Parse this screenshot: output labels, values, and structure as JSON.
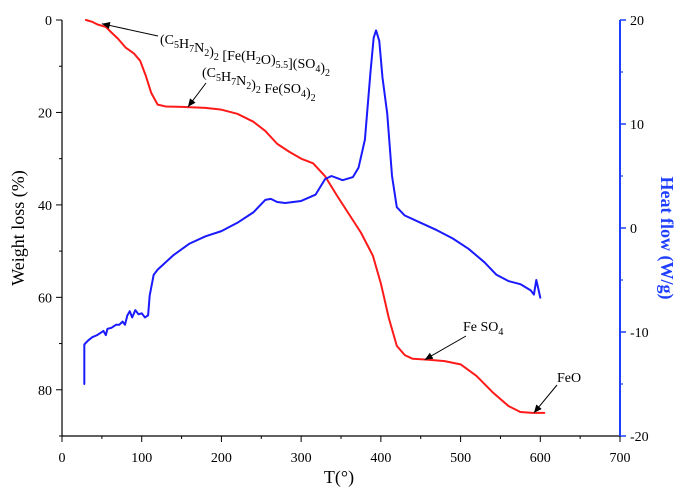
{
  "chart_data": {
    "type": "line",
    "title": "",
    "xlabel": "T(°)",
    "ylabel_left": "Weight loss (%)",
    "ylabel_right": "Heat flow (W/g)",
    "xlim": [
      0,
      700
    ],
    "ylim_left": [
      0,
      90
    ],
    "ylim_right": [
      -20,
      20
    ],
    "left_axis_inverted": true,
    "x_ticks": [
      0,
      100,
      200,
      300,
      400,
      500,
      600,
      700
    ],
    "y_left_ticks": [
      0,
      20,
      40,
      60,
      80
    ],
    "y_right_ticks": [
      20,
      10,
      0,
      -10,
      -20
    ],
    "grid": false,
    "series": [
      {
        "color": "#ff1a1a",
        "axis": "left",
        "points": [
          [
            30,
            0.0
          ],
          [
            38,
            0.4
          ],
          [
            45,
            1.0
          ],
          [
            55,
            1.5
          ],
          [
            62,
            2.7
          ],
          [
            70,
            4.0
          ],
          [
            80,
            6.0
          ],
          [
            90,
            7.2
          ],
          [
            98,
            8.8
          ],
          [
            105,
            12.0
          ],
          [
            112,
            15.8
          ],
          [
            120,
            18.3
          ],
          [
            130,
            18.7
          ],
          [
            150,
            18.8
          ],
          [
            180,
            19.0
          ],
          [
            200,
            19.4
          ],
          [
            220,
            20.3
          ],
          [
            240,
            22.0
          ],
          [
            255,
            24.0
          ],
          [
            270,
            26.8
          ],
          [
            285,
            28.5
          ],
          [
            300,
            30.0
          ],
          [
            315,
            31.0
          ],
          [
            330,
            33.8
          ],
          [
            345,
            38.0
          ],
          [
            360,
            42.0
          ],
          [
            375,
            46.0
          ],
          [
            390,
            51.0
          ],
          [
            400,
            57.0
          ],
          [
            410,
            64.5
          ],
          [
            420,
            70.5
          ],
          [
            430,
            72.5
          ],
          [
            440,
            73.3
          ],
          [
            460,
            73.5
          ],
          [
            480,
            73.8
          ],
          [
            500,
            74.5
          ],
          [
            520,
            77.0
          ],
          [
            540,
            80.5
          ],
          [
            560,
            83.5
          ],
          [
            575,
            84.8
          ],
          [
            590,
            85.0
          ],
          [
            605,
            85.0
          ]
        ]
      },
      {
        "color": "#1a1aff",
        "axis": "right",
        "points": [
          [
            28,
            -15.0
          ],
          [
            28,
            -11.2
          ],
          [
            33,
            -10.8
          ],
          [
            38,
            -10.5
          ],
          [
            44,
            -10.3
          ],
          [
            48,
            -10.1
          ],
          [
            52,
            -9.9
          ],
          [
            55,
            -10.3
          ],
          [
            57,
            -9.7
          ],
          [
            62,
            -9.6
          ],
          [
            68,
            -9.3
          ],
          [
            72,
            -9.3
          ],
          [
            76,
            -9.0
          ],
          [
            79,
            -9.3
          ],
          [
            82,
            -8.4
          ],
          [
            85,
            -8.0
          ],
          [
            88,
            -8.6
          ],
          [
            92,
            -7.9
          ],
          [
            96,
            -8.3
          ],
          [
            100,
            -8.2
          ],
          [
            104,
            -8.6
          ],
          [
            108,
            -8.4
          ],
          [
            110,
            -6.5
          ],
          [
            115,
            -4.5
          ],
          [
            120,
            -4.0
          ],
          [
            140,
            -2.6
          ],
          [
            160,
            -1.5
          ],
          [
            180,
            -0.8
          ],
          [
            200,
            -0.3
          ],
          [
            220,
            0.5
          ],
          [
            240,
            1.5
          ],
          [
            255,
            2.7
          ],
          [
            262,
            2.8
          ],
          [
            270,
            2.5
          ],
          [
            280,
            2.4
          ],
          [
            300,
            2.6
          ],
          [
            318,
            3.2
          ],
          [
            330,
            4.7
          ],
          [
            338,
            5.0
          ],
          [
            345,
            4.8
          ],
          [
            352,
            4.6
          ],
          [
            365,
            4.9
          ],
          [
            372,
            5.8
          ],
          [
            380,
            8.5
          ],
          [
            387,
            15.0
          ],
          [
            391,
            18.3
          ],
          [
            394,
            19.0
          ],
          [
            398,
            18.0
          ],
          [
            402,
            14.5
          ],
          [
            408,
            11.0
          ],
          [
            414,
            5.0
          ],
          [
            420,
            2.0
          ],
          [
            430,
            1.2
          ],
          [
            450,
            0.5
          ],
          [
            470,
            -0.2
          ],
          [
            490,
            -1.0
          ],
          [
            510,
            -2.0
          ],
          [
            530,
            -3.3
          ],
          [
            545,
            -4.5
          ],
          [
            560,
            -5.1
          ],
          [
            575,
            -5.4
          ],
          [
            588,
            -6.0
          ],
          [
            592,
            -6.4
          ],
          [
            595,
            -5.0
          ],
          [
            598,
            -6.0
          ],
          [
            600,
            -6.7
          ]
        ]
      }
    ],
    "annotations": [
      {
        "id": "ann1",
        "parts": [
          {
            "t": "(C"
          },
          {
            "t": "5",
            "sub": true
          },
          {
            "t": "H"
          },
          {
            "t": "7",
            "sub": true
          },
          {
            "t": "N"
          },
          {
            "t": "2",
            "sub": true
          },
          {
            "t": ")"
          },
          {
            "t": "2",
            "sub": true
          },
          {
            "t": " [Fe(H"
          },
          {
            "t": "2",
            "sub": true
          },
          {
            "t": "O)"
          },
          {
            "t": "5.5",
            "sub": true
          },
          {
            "t": "](SO"
          },
          {
            "t": "4",
            "sub": true
          },
          {
            "t": ")"
          },
          {
            "t": "2",
            "sub": true
          }
        ],
        "arrow_target": [
          50,
          0.8
        ]
      },
      {
        "id": "ann2",
        "parts": [
          {
            "t": "(C"
          },
          {
            "t": "5",
            "sub": true
          },
          {
            "t": "H"
          },
          {
            "t": "7",
            "sub": true
          },
          {
            "t": "N"
          },
          {
            "t": "2",
            "sub": true
          },
          {
            "t": ")"
          },
          {
            "t": "2",
            "sub": true
          },
          {
            "t": " Fe(SO"
          },
          {
            "t": "4",
            "sub": true
          },
          {
            "t": ")"
          },
          {
            "t": "2",
            "sub": true
          }
        ],
        "arrow_target": [
          158,
          18.8
        ]
      },
      {
        "id": "ann3",
        "parts": [
          {
            "t": "Fe SO"
          },
          {
            "t": "4",
            "sub": true
          }
        ],
        "arrow_target": [
          455,
          73.5
        ]
      },
      {
        "id": "ann4",
        "parts": [
          {
            "t": "FeO"
          }
        ],
        "arrow_target": [
          592,
          85.0
        ]
      }
    ]
  }
}
